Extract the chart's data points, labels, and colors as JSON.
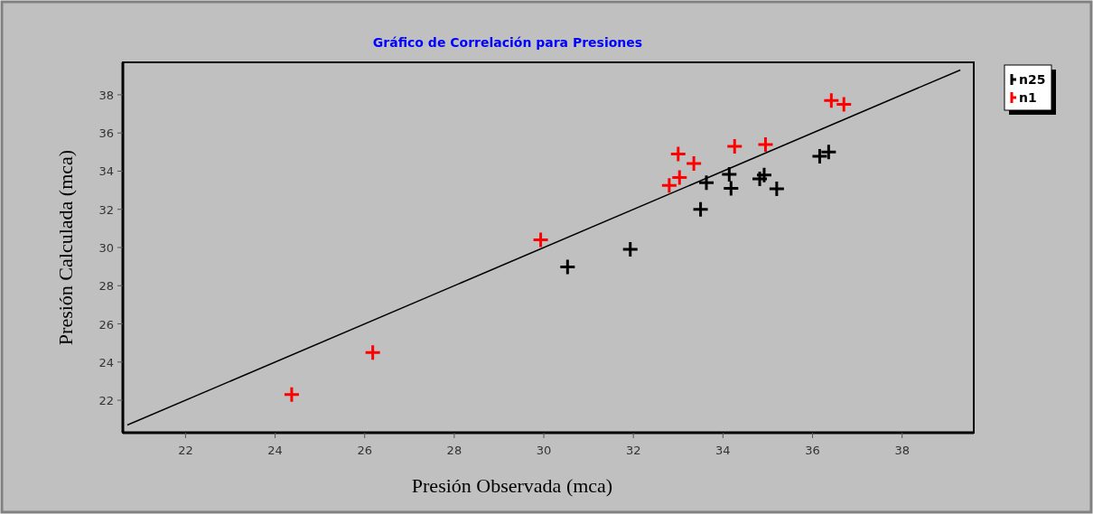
{
  "chart_data": {
    "type": "scatter",
    "title": "Gráfico de Correlación para Presiones",
    "xlabel": "Presión Observada (mca)",
    "ylabel": "Presión Calculada (mca)",
    "xlim": [
      20.6,
      39.6
    ],
    "ylim": [
      20.3,
      39.7
    ],
    "xticks": [
      22,
      24,
      26,
      28,
      30,
      32,
      34,
      36,
      38
    ],
    "yticks": [
      22,
      24,
      26,
      28,
      30,
      32,
      34,
      36,
      38
    ],
    "grid": false,
    "legend": "top right",
    "marker": "cross",
    "series": [
      {
        "type": "line",
        "color": "#000000",
        "marker": "none",
        "x": [
          20.7,
          39.3
        ],
        "values": [
          20.7,
          39.3
        ]
      },
      {
        "name": "n25",
        "color": "#000000",
        "x": [
          30.53,
          31.93,
          33.5,
          33.63,
          34.14,
          34.18,
          34.82,
          34.92,
          35.2,
          36.16,
          36.36
        ],
        "values": [
          28.98,
          29.9,
          32.0,
          33.4,
          33.83,
          33.1,
          33.6,
          33.8,
          33.08,
          34.78,
          35.0
        ]
      },
      {
        "name": "n1",
        "color": "#ff0000",
        "x": [
          24.37,
          26.18,
          29.93,
          32.8,
          33.03,
          33.0,
          33.35,
          34.26,
          34.95,
          36.42,
          36.7
        ],
        "values": [
          22.3,
          24.5,
          30.4,
          33.25,
          33.67,
          34.9,
          34.4,
          35.3,
          35.4,
          37.7,
          37.5
        ]
      }
    ]
  }
}
